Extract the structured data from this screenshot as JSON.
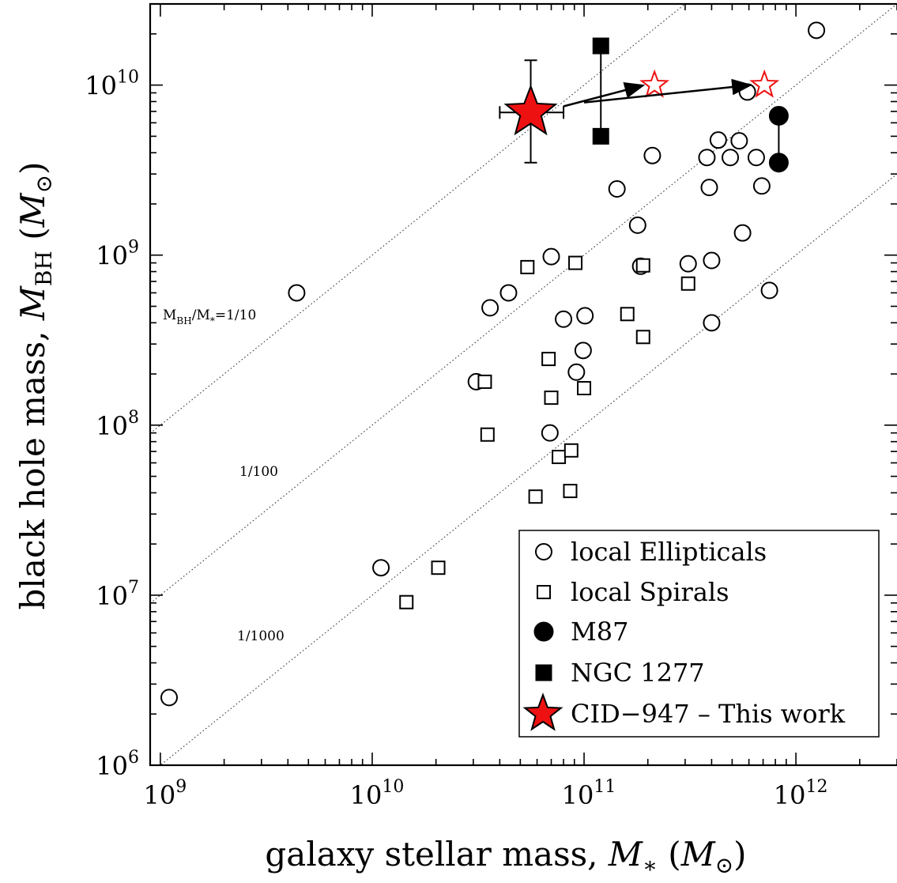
{
  "chart_data": {
    "type": "scatter",
    "title": "",
    "xlabel": "galaxy stellar mass, M* (M⊙)",
    "ylabel": "black hole mass, M_BH (M⊙)",
    "xscale": "log",
    "yscale": "log",
    "xlim": [
      895000000.0,
      3000000000000.0
    ],
    "ylim": [
      1000000.0,
      30000000000.0
    ],
    "x_tick_labels": [
      "10^9",
      "10^10",
      "10^11",
      "10^12"
    ],
    "y_tick_labels": [
      "10^6",
      "10^7",
      "10^8",
      "10^9",
      "10^10"
    ],
    "grid": false,
    "ratio_lines": [
      {
        "ratio": 0.1,
        "label": "M_BH/M*=1/10"
      },
      {
        "ratio": 0.01,
        "label": "1/100"
      },
      {
        "ratio": 0.001,
        "label": "1/1000"
      }
    ],
    "legend": {
      "position": "bottom-right",
      "entries": [
        "local Ellipticals",
        "local Spirals",
        "M87",
        "NGC 1277",
        "CID−947 – This work"
      ]
    },
    "series": [
      {
        "name": "local Ellipticals",
        "marker": "open-circle",
        "color": "#000000",
        "points": [
          {
            "x": 1100000000.0,
            "y": 2500000.0
          },
          {
            "x": 4400000000.0,
            "y": 600000000.0
          },
          {
            "x": 11000000000.0,
            "y": 14500000.0
          },
          {
            "x": 31000000000.0,
            "y": 180000000.0
          },
          {
            "x": 36000000000.0,
            "y": 490000000.0
          },
          {
            "x": 44000000000.0,
            "y": 600000000.0
          },
          {
            "x": 69000000000.0,
            "y": 90000000.0
          },
          {
            "x": 70000000000.0,
            "y": 980000000.0
          },
          {
            "x": 80000000000.0,
            "y": 420000000.0
          },
          {
            "x": 92000000000.0,
            "y": 205000000.0
          },
          {
            "x": 99000000000.0,
            "y": 275000000.0
          },
          {
            "x": 101000000000.0,
            "y": 440000000.0
          },
          {
            "x": 143000000000.0,
            "y": 2450000000.0
          },
          {
            "x": 179000000000.0,
            "y": 1500000000.0
          },
          {
            "x": 185000000000.0,
            "y": 860000000.0
          },
          {
            "x": 210000000000.0,
            "y": 3850000000.0
          },
          {
            "x": 310000000000.0,
            "y": 890000000.0
          },
          {
            "x": 380000000000.0,
            "y": 3750000000.0
          },
          {
            "x": 390000000000.0,
            "y": 2500000000.0
          },
          {
            "x": 400000000000.0,
            "y": 930000000.0
          },
          {
            "x": 400000000000.0,
            "y": 400000000.0
          },
          {
            "x": 430000000000.0,
            "y": 4750000000.0
          },
          {
            "x": 490000000000.0,
            "y": 3750000000.0
          },
          {
            "x": 540000000000.0,
            "y": 4700000000.0
          },
          {
            "x": 560000000000.0,
            "y": 1350000000.0
          },
          {
            "x": 590000000000.0,
            "y": 9100000000.0
          },
          {
            "x": 650000000000.0,
            "y": 3750000000.0
          },
          {
            "x": 690000000000.0,
            "y": 2550000000.0
          },
          {
            "x": 750000000000.0,
            "y": 620000000.0
          },
          {
            "x": 1250000000000.0,
            "y": 21000000000.0
          }
        ]
      },
      {
        "name": "local Spirals",
        "marker": "open-square",
        "color": "#000000",
        "points": [
          {
            "x": 14500000000.0,
            "y": 9100000.0
          },
          {
            "x": 20500000000.0,
            "y": 14500000.0
          },
          {
            "x": 34000000000.0,
            "y": 180000000.0
          },
          {
            "x": 35000000000.0,
            "y": 88000000.0
          },
          {
            "x": 54000000000.0,
            "y": 850000000.0
          },
          {
            "x": 59000000000.0,
            "y": 38000000.0
          },
          {
            "x": 68000000000.0,
            "y": 245000000.0
          },
          {
            "x": 70000000000.0,
            "y": 145000000.0
          },
          {
            "x": 76000000000.0,
            "y": 65000000.0
          },
          {
            "x": 86000000000.0,
            "y": 41000000.0
          },
          {
            "x": 87000000000.0,
            "y": 71000000.0
          },
          {
            "x": 91000000000.0,
            "y": 900000000.0
          },
          {
            "x": 100000000000.0,
            "y": 165000000.0
          },
          {
            "x": 160000000000.0,
            "y": 450000000.0
          },
          {
            "x": 190000000000.0,
            "y": 870000000.0
          },
          {
            "x": 190000000000.0,
            "y": 330000000.0
          },
          {
            "x": 310000000000.0,
            "y": 680000000.0
          }
        ]
      },
      {
        "name": "M87",
        "marker": "filled-circle",
        "color": "#000000",
        "points": [
          {
            "x": 830000000000.0,
            "y": 6600000000.0
          },
          {
            "x": 830000000000.0,
            "y": 3500000000.0
          }
        ],
        "connector": true
      },
      {
        "name": "NGC 1277",
        "marker": "filled-square",
        "color": "#000000",
        "points": [
          {
            "x": 120000000000.0,
            "y": 17000000000.0
          },
          {
            "x": 120000000000.0,
            "y": 5000000000.0
          }
        ],
        "connector": true
      },
      {
        "name": "CID−947 – This work",
        "marker": "filled-star",
        "color": "#ee1111",
        "points": [
          {
            "x": 56000000000.0,
            "y": 6900000000.0,
            "y_err": [
              3500000000.0,
              14000000000.0
            ],
            "x_err": [
              40000000000.0,
              80000000000.0
            ]
          }
        ]
      },
      {
        "marker": "open-star",
        "color": "#ee1111",
        "points": [
          {
            "x": 215000000000.0,
            "y": 10000000000.0
          },
          {
            "x": 710000000000.0,
            "y": 10000000000.0
          }
        ]
      }
    ],
    "arrows": [
      {
        "from": [
          80000000000.0,
          7500000000.0
        ],
        "to": [
          190000000000.0,
          9950000000.0
        ]
      },
      {
        "from": [
          100000000000.0,
          7900000000.0
        ],
        "to": [
          610000000000.0,
          10000000000.0
        ]
      }
    ]
  }
}
